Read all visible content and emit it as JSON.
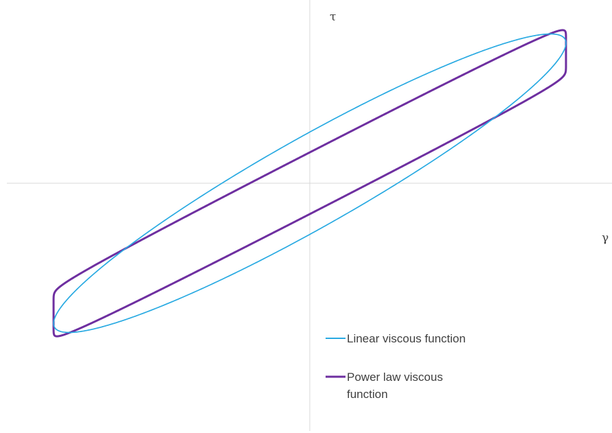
{
  "chart_data": {
    "type": "line",
    "title": "",
    "xlabel": "γ",
    "ylabel": "τ",
    "grid": false,
    "legend_position": "bottom-right",
    "xlim": [
      -1.2,
      1.2
    ],
    "ylim": [
      -1.0,
      1.0
    ],
    "series": [
      {
        "name": "Linear viscous function",
        "color": "#29AAE2",
        "shape": "ellipse",
        "x_amplitude": 1.0,
        "y_amplitude": 0.75,
        "phase_lag_rad": 0.35
      },
      {
        "name": "Power law viscous function",
        "color": "#6E2FA0",
        "shape": "rounded hysteresis loop",
        "x_amplitude": 1.0,
        "y_amplitude": 0.82,
        "flow_exponent": 0.15
      }
    ]
  }
}
